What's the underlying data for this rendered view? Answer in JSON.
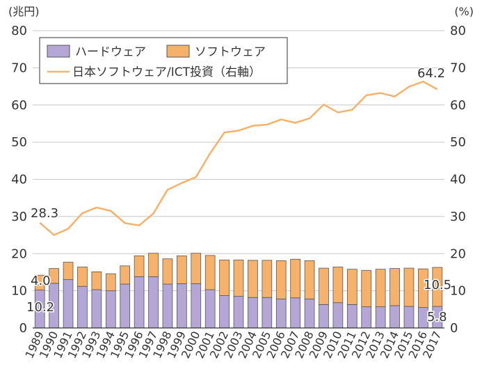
{
  "chart_data": {
    "type": "bar",
    "stacked": true,
    "categories": [
      "1989",
      "1990",
      "1991",
      "1992",
      "1993",
      "1994",
      "1995",
      "1996",
      "1997",
      "1998",
      "1999",
      "2000",
      "2001",
      "2002",
      "2003",
      "2004",
      "2005",
      "2006",
      "2007",
      "2008",
      "2009",
      "2010",
      "2011",
      "2012",
      "2013",
      "2014",
      "2015",
      "2016",
      "2017"
    ],
    "left_axis": {
      "unit": "(兆円)",
      "ylim": [
        0,
        80
      ],
      "ticks": [
        "0",
        "10",
        "20",
        "30",
        "40",
        "50",
        "60",
        "70",
        "80"
      ]
    },
    "right_axis": {
      "unit": "(%)",
      "ylim": [
        0,
        80
      ],
      "ticks": [
        "0",
        "10",
        "20",
        "30",
        "40",
        "50",
        "60",
        "70",
        "80"
      ]
    },
    "series": [
      {
        "name": "ハードウェア",
        "kind": "bar",
        "color": "#b4a7d6",
        "values": [
          10.2,
          12.0,
          13.0,
          11.2,
          10.3,
          10.0,
          11.8,
          13.8,
          13.8,
          11.8,
          11.9,
          11.9,
          10.3,
          8.7,
          8.5,
          8.2,
          8.2,
          7.8,
          8.1,
          7.8,
          6.3,
          6.8,
          6.3,
          5.7,
          5.7,
          6.0,
          5.8,
          5.5,
          5.8
        ]
      },
      {
        "name": "ソフトウェア",
        "kind": "bar",
        "color": "#f6b26b",
        "values": [
          4.0,
          4.0,
          4.7,
          5.2,
          4.8,
          4.6,
          4.9,
          5.6,
          6.3,
          6.8,
          7.5,
          8.2,
          9.2,
          9.6,
          9.8,
          10.0,
          10.0,
          10.3,
          10.4,
          10.3,
          9.8,
          9.6,
          9.5,
          9.8,
          10.1,
          10.0,
          10.3,
          10.4,
          10.5
        ]
      },
      {
        "name": "日本ソフトウェア/ICT投資（右軸）",
        "kind": "line",
        "axis": "right",
        "color": "#f6b26b",
        "values": [
          28.3,
          25.0,
          26.7,
          30.9,
          32.4,
          31.5,
          28.2,
          27.6,
          30.8,
          37.2,
          39.0,
          40.6,
          47.0,
          52.6,
          53.1,
          54.4,
          54.7,
          56.1,
          55.2,
          56.4,
          60.1,
          58.0,
          58.7,
          62.6,
          63.2,
          62.3,
          64.9,
          66.3,
          64.2
        ]
      }
    ],
    "legend_position": "top-left",
    "grid": "horizontal",
    "annotations": [
      "28.3",
      "4.0",
      "10.2",
      "64.2",
      "10.5",
      "5.8"
    ]
  }
}
